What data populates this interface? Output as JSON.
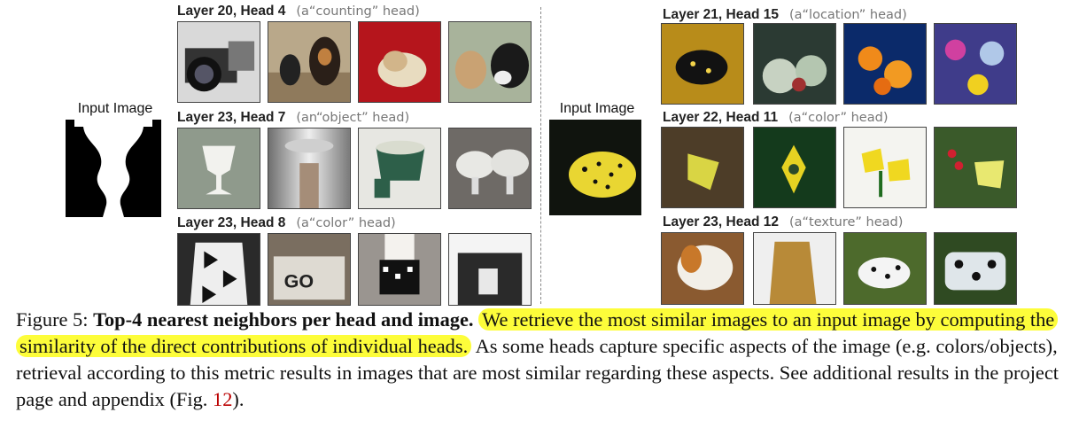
{
  "left": {
    "input_label": "Input Image",
    "rows": [
      {
        "title": "Layer 20, Head 4",
        "hint": "(a“counting” head)"
      },
      {
        "title": "Layer 23, Head 7",
        "hint": "(an“object” head)"
      },
      {
        "title": "Layer 23, Head 8",
        "hint": "(a“color” head)"
      }
    ]
  },
  "right": {
    "input_label": "Input Image",
    "rows": [
      {
        "title": "Layer 21, Head 15",
        "hint": "(a“location” head)"
      },
      {
        "title": "Layer 22, Head 11",
        "hint": "(a“color” head)"
      },
      {
        "title": "Layer 23, Head 12",
        "hint": "(a“texture” head)"
      }
    ]
  },
  "caption": {
    "figure_label": "Figure 5:",
    "bold_title": "Top-4 nearest neighbors per head and image.",
    "highlighted": "We retrieve the most similar images to an input image by computing the similarity of the direct contributions of individual heads.",
    "rest": "As some heads capture specific aspects of the image (e.g. colors/objects), retrieval according to this metric results in images that are most similar regarding these aspects. See additional results in the project page and appendix (Fig.",
    "fig_ref": "12",
    "end": ")."
  },
  "colors": {
    "highlight": "#fdfd3a",
    "figref": "#bb0000"
  }
}
